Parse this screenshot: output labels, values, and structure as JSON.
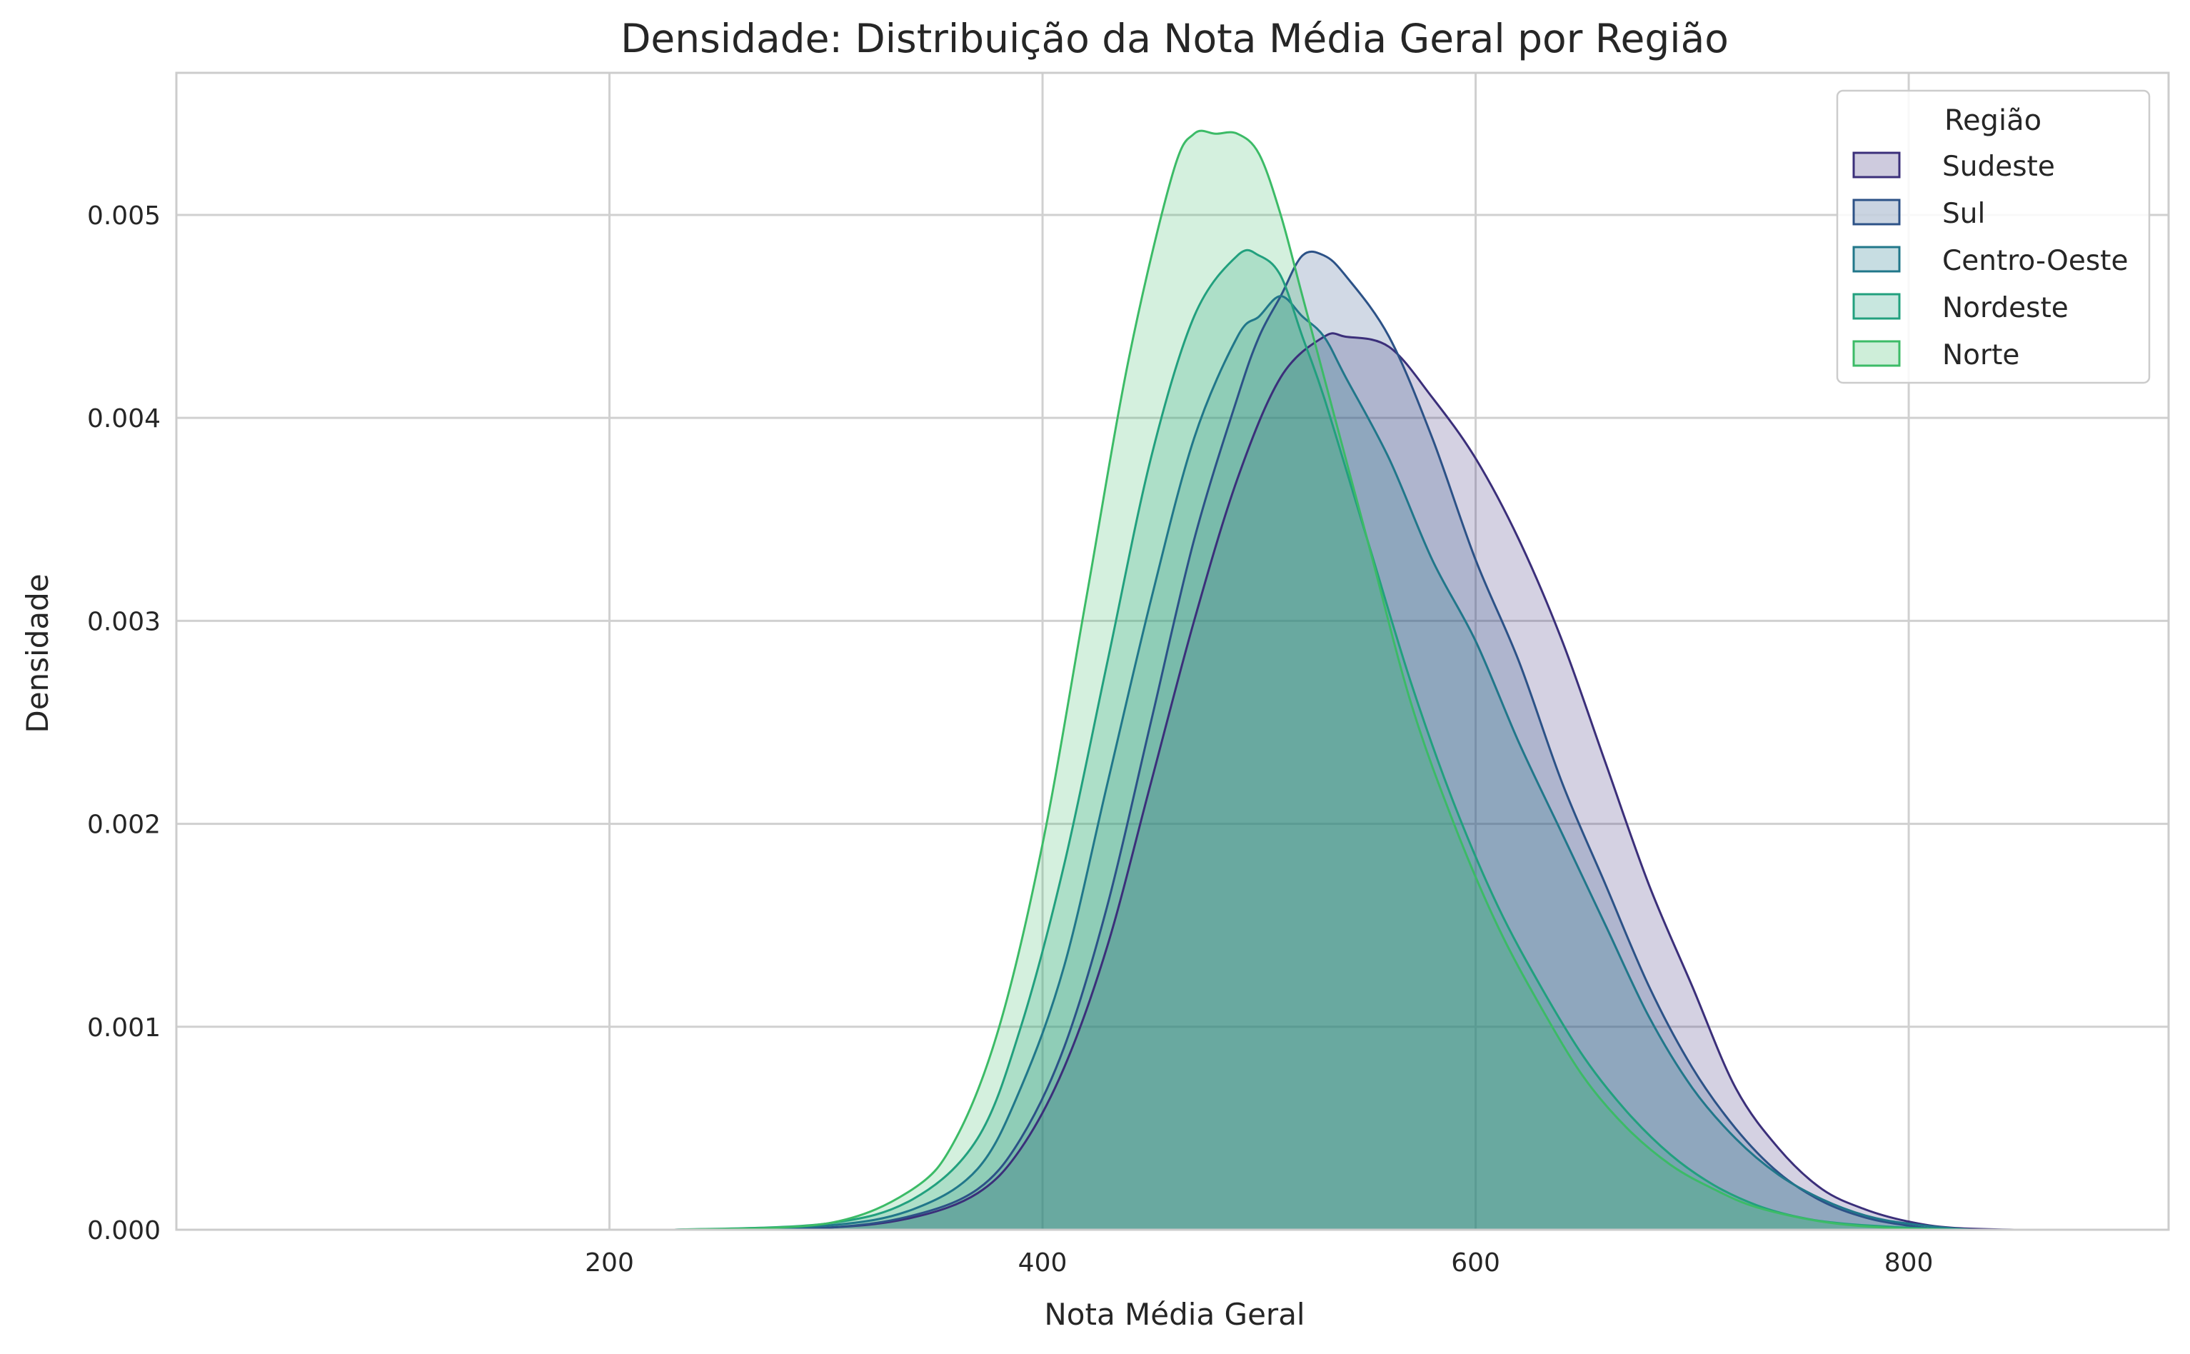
{
  "chart_data": {
    "type": "area",
    "title": "Densidade: Distribuição da Nota Média Geral por Região",
    "xlabel": "Nota Média Geral",
    "ylabel": "Densidade",
    "xlim": [
      0,
      920
    ],
    "ylim": [
      0,
      0.0057
    ],
    "xticks": [
      200,
      400,
      600,
      800
    ],
    "xtick_labels": [
      "200",
      "400",
      "600",
      "800"
    ],
    "yticks": [
      0,
      0.001,
      0.002,
      0.003,
      0.004,
      0.005
    ],
    "ytick_labels": [
      "0.000",
      "0.001",
      "0.002",
      "0.003",
      "0.004",
      "0.005"
    ],
    "grid": true,
    "legend": {
      "title": "Região",
      "placement": "top-right"
    },
    "series": [
      {
        "name": "Sudeste",
        "color": "#3b2f7a",
        "x": [
          230,
          300,
          340,
          370,
          390,
          410,
          430,
          450,
          470,
          490,
          510,
          530,
          540,
          560,
          580,
          600,
          620,
          640,
          660,
          680,
          700,
          720,
          740,
          760,
          780,
          800,
          820,
          850,
          880
        ],
        "y": [
          0.0,
          1e-05,
          6e-05,
          0.00018,
          0.0004,
          0.0008,
          0.0014,
          0.0022,
          0.003,
          0.0037,
          0.0042,
          0.0044,
          0.0044,
          0.00435,
          0.0041,
          0.0038,
          0.0034,
          0.0029,
          0.0023,
          0.0017,
          0.0012,
          0.0007,
          0.0004,
          0.0002,
          0.0001,
          4e-05,
          1e-05,
          0.0,
          0.0
        ]
      },
      {
        "name": "Sul",
        "color": "#2c5287",
        "x": [
          230,
          300,
          340,
          370,
          390,
          410,
          430,
          450,
          470,
          490,
          500,
          510,
          520,
          530,
          540,
          560,
          580,
          600,
          620,
          640,
          660,
          680,
          700,
          720,
          740,
          760,
          780,
          800,
          820,
          850,
          880
        ],
        "y": [
          0.0,
          1e-05,
          7e-05,
          0.0002,
          0.00045,
          0.0009,
          0.0016,
          0.0025,
          0.0034,
          0.0041,
          0.0044,
          0.0046,
          0.0048,
          0.0048,
          0.0047,
          0.0044,
          0.0039,
          0.0033,
          0.0028,
          0.0022,
          0.0017,
          0.0012,
          0.0008,
          0.0005,
          0.00028,
          0.00014,
          6e-05,
          2e-05,
          0.0,
          0.0,
          0.0
        ]
      },
      {
        "name": "Centro-Oeste",
        "color": "#21778a",
        "x": [
          230,
          300,
          340,
          370,
          390,
          410,
          430,
          450,
          470,
          490,
          500,
          510,
          520,
          530,
          540,
          560,
          580,
          600,
          620,
          640,
          660,
          680,
          700,
          720,
          740,
          760,
          780,
          800,
          830,
          860
        ],
        "y": [
          0.0,
          2e-05,
          0.0001,
          0.0003,
          0.0007,
          0.0013,
          0.0022,
          0.0031,
          0.0039,
          0.0044,
          0.0045,
          0.0046,
          0.0045,
          0.0044,
          0.0042,
          0.0038,
          0.0033,
          0.0029,
          0.0024,
          0.00195,
          0.0015,
          0.00105,
          0.0007,
          0.00045,
          0.00027,
          0.00015,
          7e-05,
          3e-05,
          0.0,
          0.0
        ]
      },
      {
        "name": "Nordeste",
        "color": "#22a07e",
        "x": [
          230,
          300,
          340,
          370,
          390,
          410,
          430,
          450,
          470,
          490,
          500,
          510,
          520,
          530,
          550,
          570,
          590,
          610,
          630,
          650,
          670,
          690,
          710,
          730,
          750,
          770,
          800,
          830
        ],
        "y": [
          0.0,
          3e-05,
          0.00015,
          0.00045,
          0.001,
          0.0018,
          0.0028,
          0.0038,
          0.0045,
          0.0048,
          0.0048,
          0.0047,
          0.0044,
          0.0041,
          0.0034,
          0.0027,
          0.0021,
          0.0016,
          0.0012,
          0.00085,
          0.00058,
          0.00037,
          0.00022,
          0.00012,
          6e-05,
          3e-05,
          1e-05,
          0.0
        ]
      },
      {
        "name": "Norte",
        "color": "#3cbb67",
        "x": [
          230,
          300,
          340,
          360,
          380,
          400,
          420,
          440,
          460,
          470,
          480,
          490,
          500,
          510,
          520,
          530,
          550,
          570,
          590,
          610,
          630,
          650,
          670,
          690,
          710,
          730,
          760,
          790,
          820
        ],
        "y": [
          0.0,
          3e-05,
          0.0002,
          0.00045,
          0.001,
          0.0019,
          0.0031,
          0.0043,
          0.0052,
          0.0054,
          0.0054,
          0.0054,
          0.0053,
          0.005,
          0.0046,
          0.0042,
          0.0034,
          0.0026,
          0.002,
          0.0015,
          0.0011,
          0.00075,
          0.0005,
          0.00032,
          0.0002,
          0.00011,
          4e-05,
          1e-05,
          0.0
        ]
      }
    ]
  }
}
